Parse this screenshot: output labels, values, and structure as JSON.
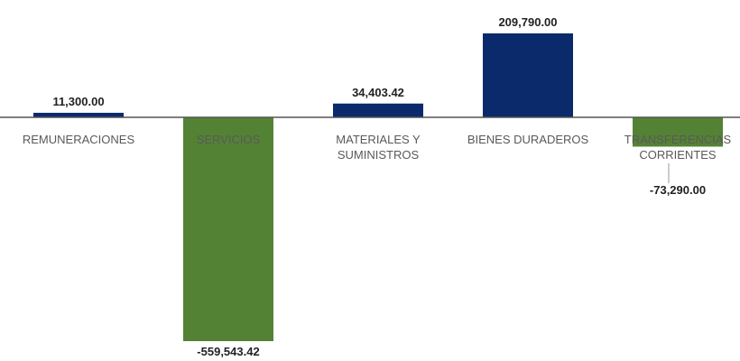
{
  "chart_data": {
    "type": "bar",
    "categories": [
      "REMUNERACIONES",
      "SERVICIOS",
      "MATERIALES Y SUMINISTROS",
      "BIENES DURADEROS",
      "TRANSFERENCIAS CORRIENTES"
    ],
    "values": [
      11300,
      -559543.42,
      34403.42,
      209790,
      -73290
    ],
    "value_labels": [
      "11,300.00",
      "-559,543.42",
      "34,403.42",
      "209,790.00",
      "-73,290.00"
    ],
    "colors": [
      "#0b2a6b",
      "#548235",
      "#0b2a6b",
      "#0b2a6b",
      "#548235"
    ]
  }
}
